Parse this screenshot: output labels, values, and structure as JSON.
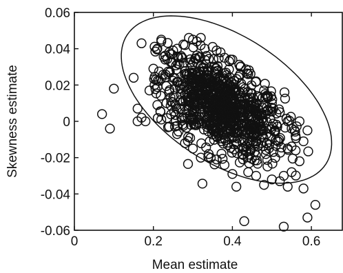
{
  "chart_data": {
    "type": "scatter",
    "xlabel": "Mean estimate",
    "ylabel": "Skewness estimate",
    "xlim": [
      0,
      0.68
    ],
    "ylim": [
      -0.06,
      0.06
    ],
    "x_ticks": [
      0,
      0.2,
      0.4,
      0.6
    ],
    "x_tick_labels": [
      "0",
      "0.2",
      "0.4",
      "0.6"
    ],
    "y_ticks": [
      -0.06,
      -0.04,
      -0.02,
      0,
      0.02,
      0.04,
      0.06
    ],
    "y_tick_labels": [
      "-0.06",
      "-0.04",
      "-0.02",
      "0",
      "0.02",
      "0.04",
      "0.06"
    ],
    "marker": "open-circle",
    "confidence_ellipse": {
      "center": [
        0.385,
        0.012
      ],
      "semi_axes_units": [
        0.2,
        0.025
      ],
      "orientation": "tilted toward lower-right"
    },
    "dense_cluster": {
      "center": [
        0.37,
        0.008
      ],
      "spread": [
        0.08,
        0.014
      ],
      "approx_points": 900
    },
    "points": [
      {
        "x": 0.07,
        "y": 0.004
      },
      {
        "x": 0.09,
        "y": -0.004
      },
      {
        "x": 0.1,
        "y": 0.018
      },
      {
        "x": 0.15,
        "y": 0.024
      },
      {
        "x": 0.16,
        "y": 0.0
      },
      {
        "x": 0.16,
        "y": 0.007
      },
      {
        "x": 0.17,
        "y": 0.002
      },
      {
        "x": 0.17,
        "y": 0.043
      },
      {
        "x": 0.18,
        "y": 0.0
      },
      {
        "x": 0.19,
        "y": 0.017
      },
      {
        "x": 0.2,
        "y": 0.029
      },
      {
        "x": 0.21,
        "y": 0.04
      },
      {
        "x": 0.22,
        "y": 0.045
      },
      {
        "x": 0.22,
        "y": 0.044
      },
      {
        "x": 0.23,
        "y": 0.034
      },
      {
        "x": 0.24,
        "y": 0.038
      },
      {
        "x": 0.25,
        "y": 0.039
      },
      {
        "x": 0.26,
        "y": 0.04
      },
      {
        "x": 0.27,
        "y": 0.036
      },
      {
        "x": 0.28,
        "y": 0.042
      },
      {
        "x": 0.29,
        "y": 0.046
      },
      {
        "x": 0.3,
        "y": 0.045
      },
      {
        "x": 0.31,
        "y": 0.044
      },
      {
        "x": 0.32,
        "y": 0.046
      },
      {
        "x": 0.33,
        "y": 0.04
      },
      {
        "x": 0.35,
        "y": 0.041
      },
      {
        "x": 0.36,
        "y": 0.039
      },
      {
        "x": 0.37,
        "y": 0.038
      },
      {
        "x": 0.38,
        "y": 0.035
      },
      {
        "x": 0.4,
        "y": 0.034
      },
      {
        "x": 0.42,
        "y": 0.03
      },
      {
        "x": 0.44,
        "y": 0.026
      },
      {
        "x": 0.46,
        "y": 0.022
      },
      {
        "x": 0.48,
        "y": 0.017
      },
      {
        "x": 0.5,
        "y": 0.01
      },
      {
        "x": 0.52,
        "y": 0.005
      },
      {
        "x": 0.54,
        "y": 0.0
      },
      {
        "x": 0.55,
        "y": -0.004
      },
      {
        "x": 0.56,
        "y": -0.008
      },
      {
        "x": 0.57,
        "y": 0.0
      },
      {
        "x": 0.58,
        "y": -0.011
      },
      {
        "x": 0.59,
        "y": -0.005
      },
      {
        "x": 0.56,
        "y": -0.016
      },
      {
        "x": 0.57,
        "y": -0.022
      },
      {
        "x": 0.55,
        "y": -0.028
      },
      {
        "x": 0.53,
        "y": -0.03
      },
      {
        "x": 0.52,
        "y": -0.033
      },
      {
        "x": 0.54,
        "y": -0.036
      },
      {
        "x": 0.5,
        "y": -0.032
      },
      {
        "x": 0.48,
        "y": -0.035
      },
      {
        "x": 0.46,
        "y": -0.03
      },
      {
        "x": 0.44,
        "y": -0.028
      },
      {
        "x": 0.41,
        "y": -0.036
      },
      {
        "x": 0.4,
        "y": -0.029
      },
      {
        "x": 0.38,
        "y": -0.024
      },
      {
        "x": 0.36,
        "y": -0.021
      },
      {
        "x": 0.34,
        "y": -0.018
      },
      {
        "x": 0.32,
        "y": -0.02
      },
      {
        "x": 0.3,
        "y": -0.015
      },
      {
        "x": 0.28,
        "y": -0.012
      },
      {
        "x": 0.26,
        "y": -0.007
      },
      {
        "x": 0.24,
        "y": -0.003
      },
      {
        "x": 0.22,
        "y": 0.001
      },
      {
        "x": 0.21,
        "y": 0.009
      },
      {
        "x": 0.58,
        "y": -0.037
      },
      {
        "x": 0.43,
        "y": -0.055
      },
      {
        "x": 0.53,
        "y": -0.058
      },
      {
        "x": 0.59,
        "y": -0.053
      },
      {
        "x": 0.61,
        "y": -0.046
      }
    ]
  }
}
